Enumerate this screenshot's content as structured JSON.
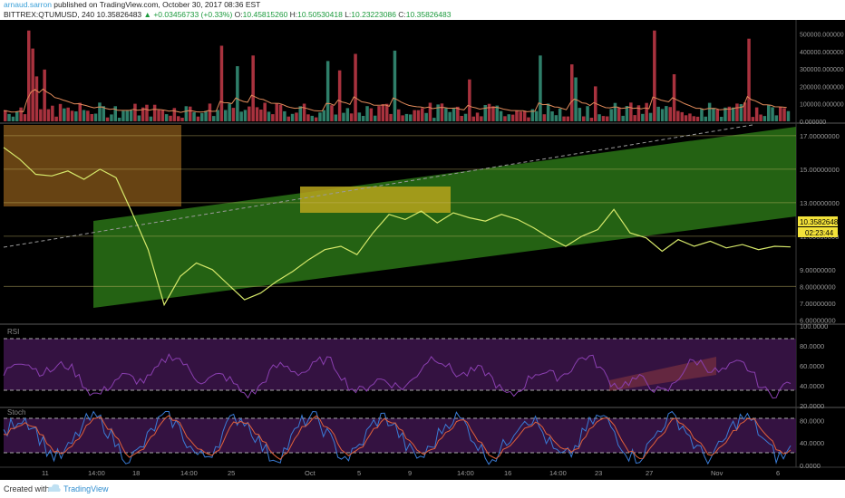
{
  "header": {
    "author": "arnaud.sarron",
    "published_text": "published on TradingView.com, October 30, 2017 08:36 EST",
    "symbol": "BITTREX:QTUMUSD, 240",
    "last": "10.35826483",
    "change": "+0.03456733 (+0.33%)",
    "o_label": "O:",
    "o_value": "10.45815260",
    "h_label": "H:",
    "h_value": "10.50530418",
    "l_label": "L:",
    "l_value": "10.23223086",
    "c_label": "C:",
    "c_value": "10.35826483"
  },
  "footer": {
    "created": "Created with",
    "brand": "TradingView"
  },
  "colors": {
    "price_line": "#d6e86a",
    "channel": "#2e7d18",
    "orange_box": "#8a5a1a",
    "yellow_box": "#b7a51c",
    "rsi_line": "#8a3fb0",
    "stoch_k": "#3a7bd5",
    "stoch_d": "#e0603a",
    "vol_up": "#2f7f6a",
    "vol_down": "#a8323e"
  },
  "chart_data": [
    {
      "type": "line",
      "name": "price",
      "y_ticks": [
        "17.00000000",
        "15.00000000",
        "13.00000000",
        "11.00000000",
        "9.00000000",
        "8.00000000",
        "7.00000000",
        "6.00000000"
      ],
      "last_price_label": "10.35826483",
      "countdown_label": "02:23:44",
      "x_ticks": [
        "11",
        "14:00",
        "18",
        "14:00",
        "25",
        "Oct",
        "5",
        "9",
        "14:00",
        "16",
        "14:00",
        "23",
        "27",
        "Nov",
        "6"
      ],
      "ylim": [
        5.8,
        17.7
      ],
      "x": [
        0,
        1,
        2,
        3,
        4,
        5,
        6,
        7,
        8,
        9,
        10,
        11,
        12,
        13,
        14,
        15,
        16,
        17,
        18,
        19,
        20,
        21,
        22,
        23,
        24,
        25,
        26,
        27,
        28,
        29,
        30,
        31,
        32,
        33,
        34,
        35,
        36,
        37,
        38,
        39,
        40,
        41,
        42,
        43,
        44,
        45,
        46,
        47,
        48,
        49
      ],
      "values": [
        16.3,
        15.6,
        14.7,
        14.6,
        14.9,
        14.4,
        15.0,
        14.5,
        12.4,
        10.2,
        6.9,
        8.6,
        9.4,
        9.0,
        8.1,
        7.2,
        7.6,
        8.3,
        8.9,
        9.6,
        10.2,
        10.4,
        9.9,
        11.2,
        12.3,
        12.0,
        12.5,
        11.8,
        12.4,
        12.1,
        11.9,
        12.3,
        12.0,
        11.5,
        10.9,
        10.4,
        11.0,
        11.4,
        12.6,
        11.2,
        10.9,
        10.1,
        10.8,
        10.4,
        10.7,
        10.3,
        10.5,
        10.2,
        10.4,
        10.36
      ]
    },
    {
      "type": "bar",
      "name": "volume",
      "y_ticks": [
        "500000.000000",
        "400000.000000",
        "300000.000000",
        "200000.000000",
        "100000.000000",
        "0.000000"
      ],
      "ylim": [
        0,
        560000
      ]
    },
    {
      "type": "line",
      "name": "RSI",
      "label": "RSI",
      "y_ticks": [
        "100.0000",
        "80.0000",
        "60.0000",
        "40.0000",
        "20.0000"
      ],
      "ylim": [
        20,
        100
      ],
      "bands": [
        70,
        30
      ]
    },
    {
      "type": "line",
      "name": "Stoch",
      "label": "Stoch",
      "y_ticks": [
        "80.0000",
        "40.0000",
        "0.0000"
      ],
      "ylim": [
        0,
        100
      ],
      "bands": [
        80,
        20
      ]
    }
  ]
}
